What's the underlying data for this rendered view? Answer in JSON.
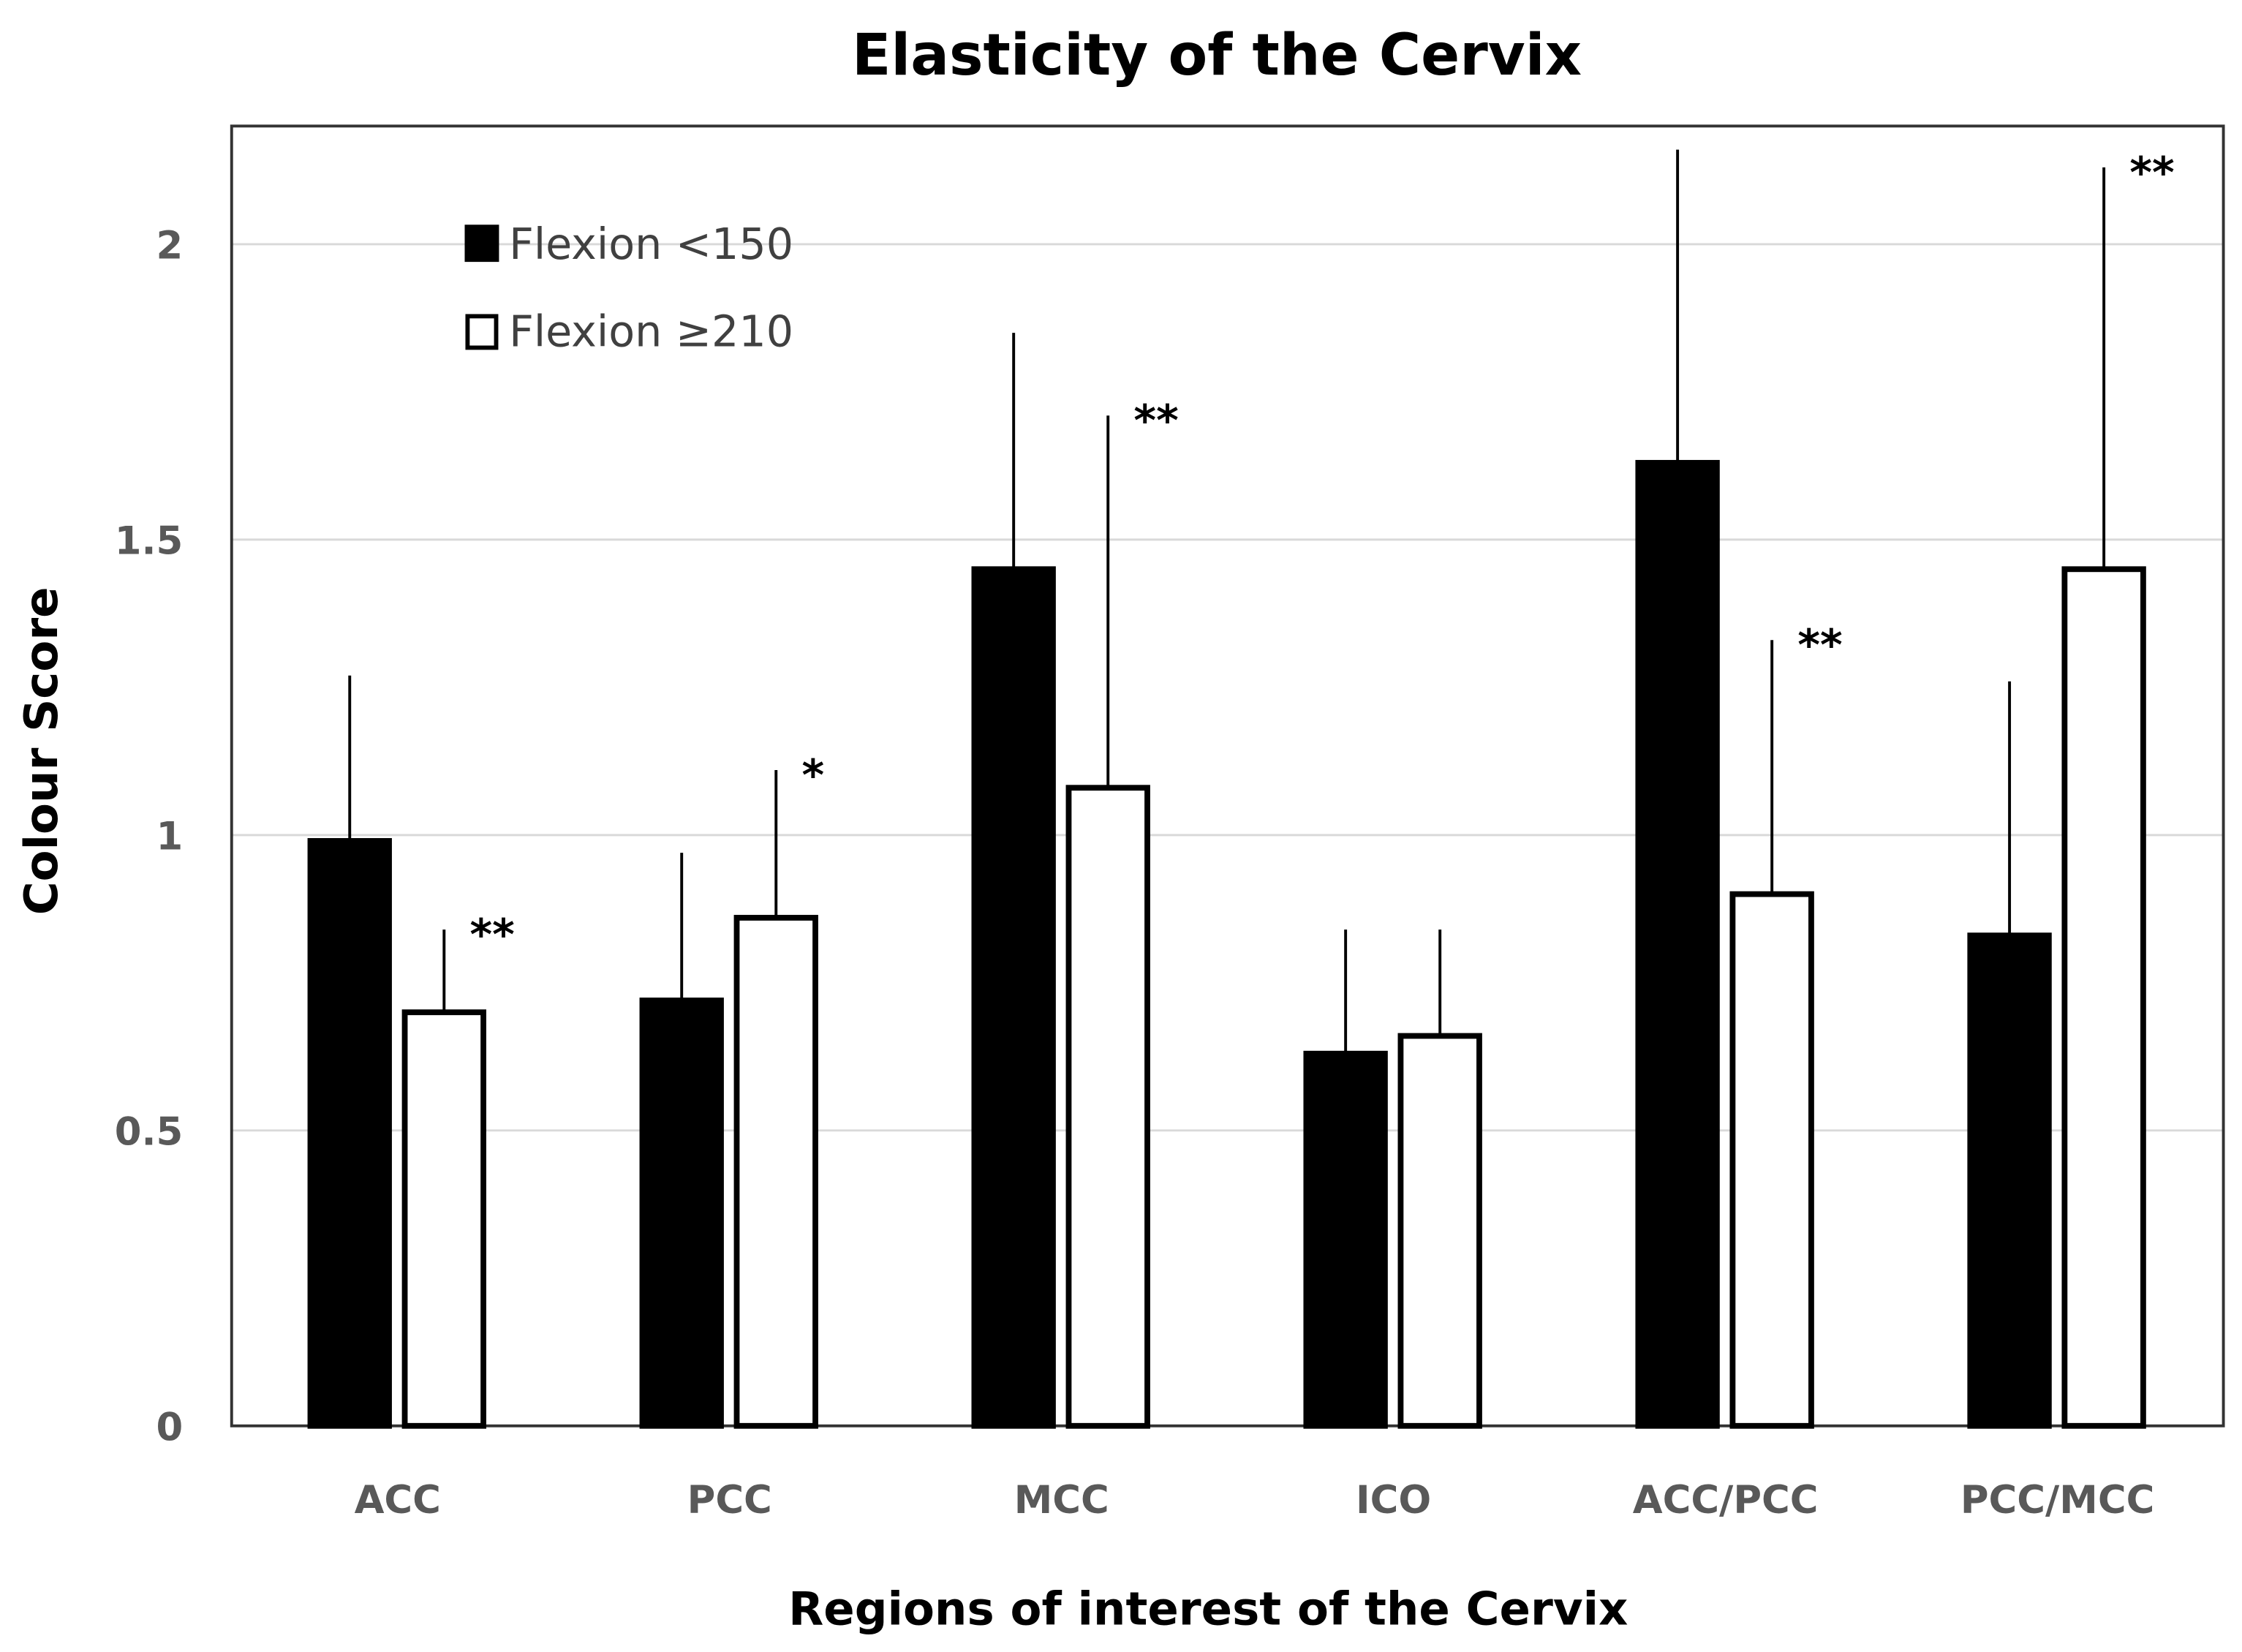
{
  "chart_data": {
    "type": "bar",
    "title": "Elasticity of the Cervix",
    "xlabel": "Regions of interest of the Cervix",
    "ylabel": "Colour Score",
    "ylim": [
      0,
      2.2
    ],
    "yticks": [
      0,
      0.5,
      1,
      1.5,
      2
    ],
    "ytick_labels": [
      "0",
      "0.5",
      "1",
      "1.5",
      "2"
    ],
    "grid": true,
    "legend_position": "top-left",
    "categories": [
      "ACC",
      "PCC",
      "MCC",
      "ICO",
      "ACC/PCC",
      "PCC/MCC"
    ],
    "series": [
      {
        "name": "Flexion <150",
        "fill": "#000000",
        "values": [
          0.99,
          0.72,
          1.45,
          0.63,
          1.63,
          0.83
        ],
        "error_upper": [
          0.28,
          0.25,
          0.4,
          0.21,
          0.53,
          0.43
        ]
      },
      {
        "name": "Flexion ≥210",
        "fill": "#ffffff",
        "values": [
          0.7,
          0.86,
          1.08,
          0.66,
          0.9,
          1.45
        ],
        "error_upper": [
          0.14,
          0.25,
          0.63,
          0.18,
          0.43,
          0.68
        ]
      }
    ],
    "annotations": [
      "**",
      "*",
      "**",
      "",
      "**",
      "**"
    ]
  }
}
